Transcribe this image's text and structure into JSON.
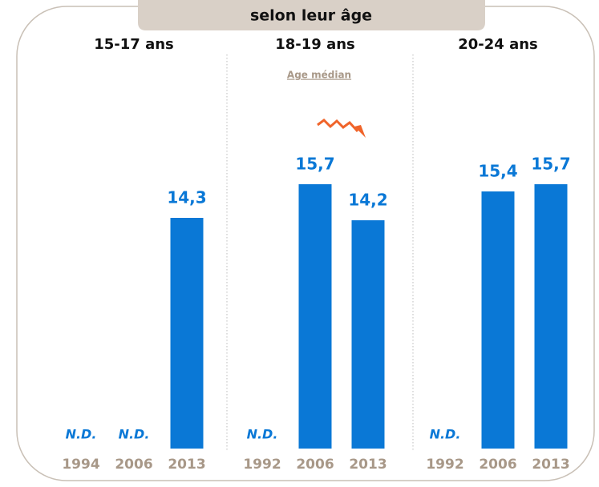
{
  "title": "selon leur âge",
  "annotation": "Age médian",
  "chart_data": [
    {
      "type": "bar",
      "title": "15-17 ans",
      "categories": [
        "1994",
        "2006",
        "2013"
      ],
      "values": [
        null,
        null,
        14.3
      ],
      "value_labels": [
        "N.D.",
        "N.D.",
        "14,3"
      ],
      "color": "#0a78d6",
      "ylim": [
        4.7,
        17.7
      ]
    },
    {
      "type": "bar",
      "title": "18-19 ans",
      "categories": [
        "1992",
        "2006",
        "2013"
      ],
      "values": [
        null,
        15.7,
        14.2
      ],
      "value_labels": [
        "N.D.",
        "15,7",
        "14,2"
      ],
      "color": "#0a78d6",
      "ylim": [
        4.7,
        17.7
      ]
    },
    {
      "type": "bar",
      "title": "20-24 ans",
      "categories": [
        "1992",
        "2006",
        "2013"
      ],
      "values": [
        null,
        15.4,
        15.7
      ],
      "value_labels": [
        "N.D.",
        "15,4",
        "15,7"
      ],
      "color": "#0a78d6",
      "ylim": [
        4.7,
        17.7
      ]
    }
  ]
}
